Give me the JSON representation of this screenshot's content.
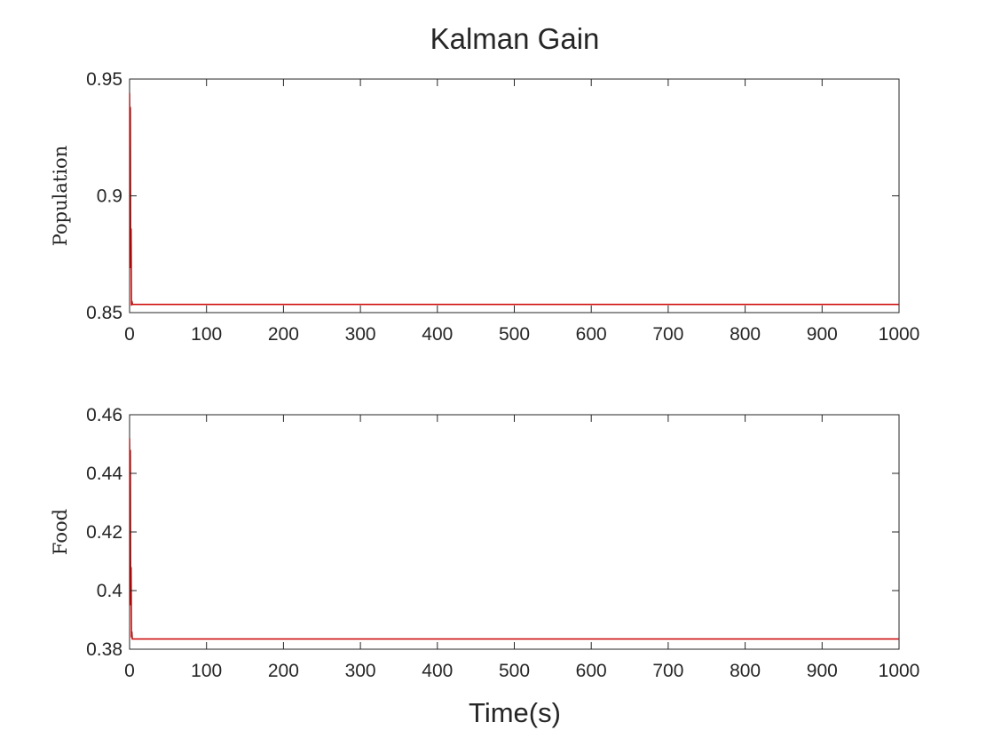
{
  "chart_data": {
    "type": "line",
    "title": "Kalman Gain",
    "xlabel": "Time(s)",
    "line_color": "#cc0000",
    "axes_color": "#262626",
    "grid": false,
    "subplots": [
      {
        "ylabel": "Population",
        "xlim": [
          0,
          1000
        ],
        "ylim": [
          0.85,
          0.95
        ],
        "xticks": [
          0,
          100,
          200,
          300,
          400,
          500,
          600,
          700,
          800,
          900,
          1000
        ],
        "xtick_labels": [
          "0",
          "100",
          "200",
          "300",
          "400",
          "500",
          "600",
          "700",
          "800",
          "900",
          "1000"
        ],
        "yticks": [
          0.85,
          0.9,
          0.95
        ],
        "ytick_labels": [
          "0.85",
          "0.9",
          "0.95"
        ],
        "series": [
          {
            "x": [
              0,
              0.5,
              1,
              1.5,
              2,
              2.5,
              3,
              3.5,
              4,
              5,
              6,
              8,
              10,
              50,
              100,
              200,
              500,
              1000
            ],
            "y": [
              0.944,
              0.921,
              0.938,
              0.869,
              0.886,
              0.853,
              0.855,
              0.854,
              0.8535,
              0.8535,
              0.8535,
              0.8535,
              0.8535,
              0.8535,
              0.8535,
              0.8535,
              0.8535,
              0.8535
            ]
          }
        ]
      },
      {
        "ylabel": "Food",
        "xlim": [
          0,
          1000
        ],
        "ylim": [
          0.38,
          0.46
        ],
        "xticks": [
          0,
          100,
          200,
          300,
          400,
          500,
          600,
          700,
          800,
          900,
          1000
        ],
        "xtick_labels": [
          "0",
          "100",
          "200",
          "300",
          "400",
          "500",
          "600",
          "700",
          "800",
          "900",
          "1000"
        ],
        "yticks": [
          0.38,
          0.4,
          0.42,
          0.44,
          0.46
        ],
        "ytick_labels": [
          "0.38",
          "0.4",
          "0.42",
          "0.44",
          "0.46"
        ],
        "series": [
          {
            "x": [
              0,
              0.5,
              1,
              1.5,
              2,
              2.5,
              3,
              3.5,
              4,
              5,
              6,
              8,
              10,
              50,
              100,
              200,
              500,
              1000
            ],
            "y": [
              0.452,
              0.436,
              0.448,
              0.395,
              0.408,
              0.384,
              0.386,
              0.3835,
              0.3835,
              0.3835,
              0.3835,
              0.3835,
              0.3835,
              0.3835,
              0.3835,
              0.3835,
              0.3835,
              0.3835
            ]
          }
        ]
      }
    ]
  }
}
